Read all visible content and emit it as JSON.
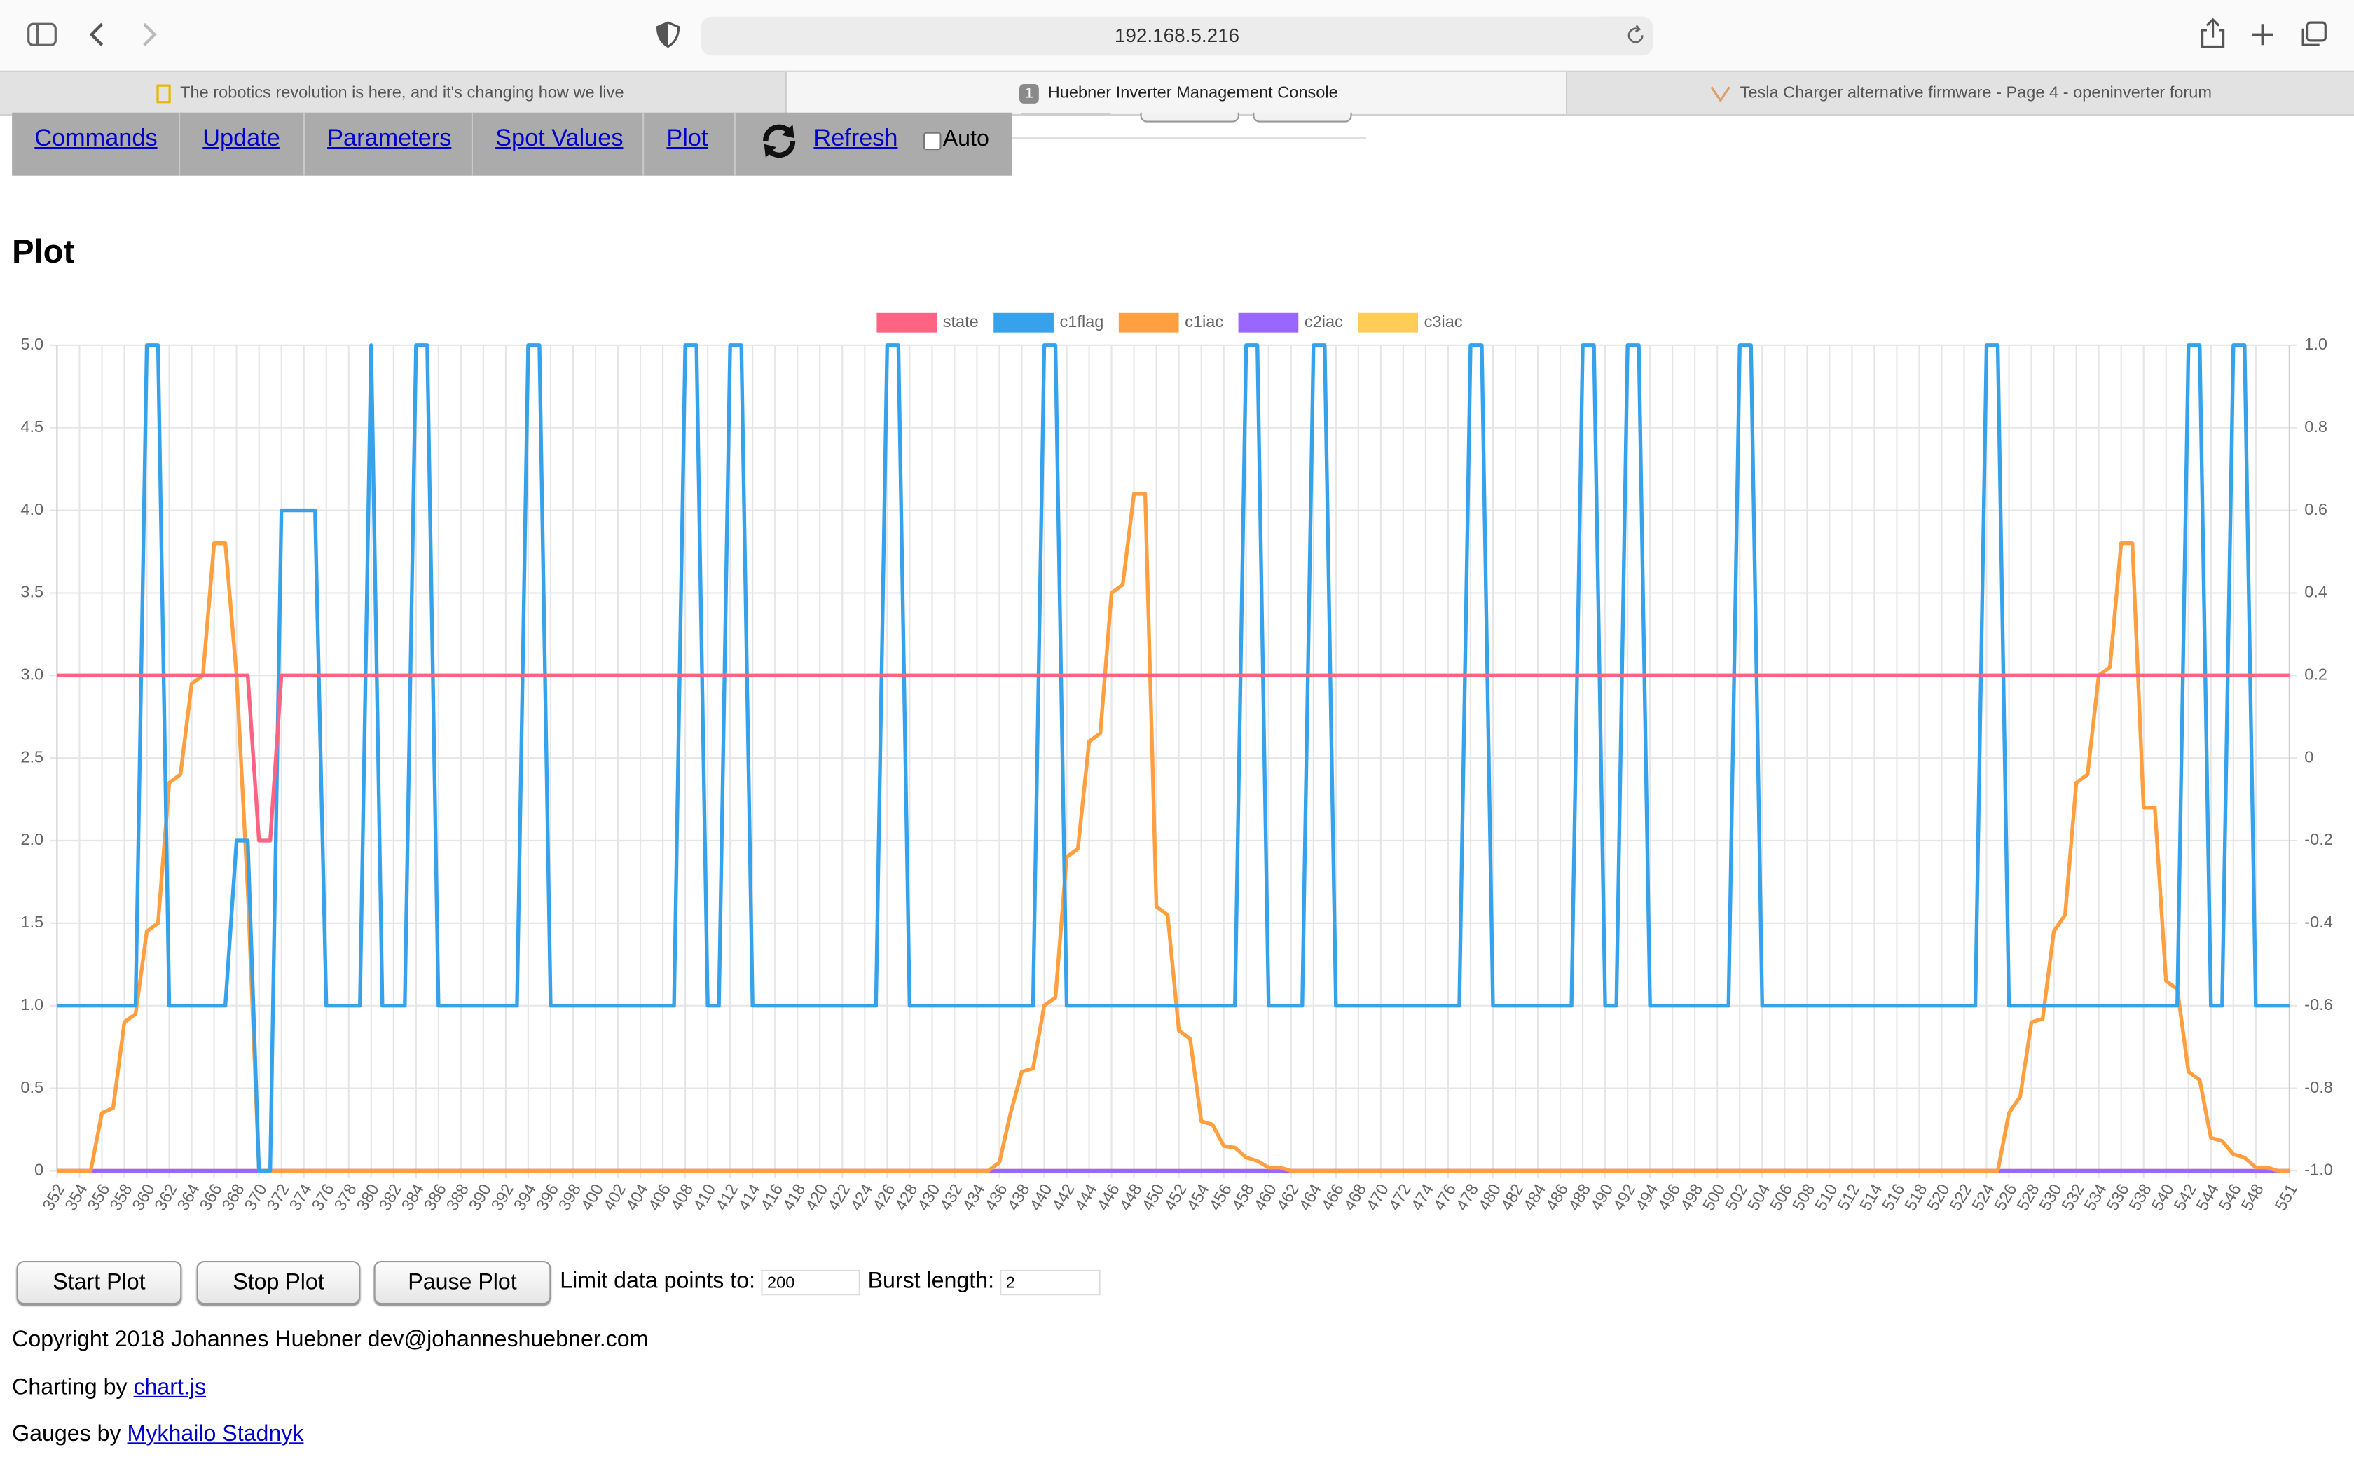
{
  "browser": {
    "url": "192.168.5.216",
    "tabs": [
      {
        "title": "The robotics revolution is here, and it's changing how we live"
      },
      {
        "badge": "1",
        "title": "Huebner Inverter Management Console"
      },
      {
        "title": "Tesla Charger alternative firmware - Page 4 - openinverter forum"
      }
    ]
  },
  "nav": {
    "links": [
      "Commands",
      "Update",
      "Parameters",
      "Spot Values",
      "Plot",
      "Refresh"
    ],
    "auto": "Auto"
  },
  "heading": "Plot",
  "chart_data": {
    "type": "line",
    "legend": "top",
    "grid": true,
    "xlim": [
      352,
      551
    ],
    "xticks": [
      352,
      354,
      356,
      358,
      360,
      362,
      364,
      366,
      368,
      370,
      372,
      374,
      376,
      378,
      380,
      382,
      384,
      386,
      388,
      390,
      392,
      394,
      396,
      398,
      400,
      402,
      404,
      406,
      408,
      410,
      412,
      414,
      416,
      418,
      420,
      422,
      424,
      426,
      428,
      430,
      432,
      434,
      436,
      438,
      440,
      442,
      444,
      446,
      448,
      450,
      452,
      454,
      456,
      458,
      460,
      462,
      464,
      466,
      468,
      470,
      472,
      474,
      476,
      478,
      480,
      482,
      484,
      486,
      488,
      490,
      492,
      494,
      496,
      498,
      500,
      502,
      504,
      506,
      508,
      510,
      512,
      514,
      516,
      518,
      520,
      522,
      524,
      526,
      528,
      530,
      532,
      534,
      536,
      538,
      540,
      542,
      544,
      546,
      548,
      551
    ],
    "ylim": [
      0,
      5
    ],
    "yticks": [
      0,
      0.5,
      {
        "value": 1,
        "label": "1.0"
      },
      1.5,
      {
        "value": 2,
        "label": "2.0"
      },
      2.5,
      {
        "value": 3,
        "label": "3.0"
      },
      3.5,
      {
        "value": 4,
        "label": "4.0"
      },
      4.5,
      {
        "value": 5,
        "label": "5.0"
      }
    ],
    "y2lim": [
      -1,
      1
    ],
    "y2ticks": [
      {
        "value": -1,
        "label": "-1.0"
      },
      -0.8,
      -0.6,
      -0.4,
      -0.2,
      0,
      0.2,
      0.4,
      0.6,
      0.8,
      {
        "value": 1,
        "label": "1.0"
      }
    ],
    "series": [
      {
        "name": "state",
        "color": "#ff6384",
        "x": [
          352,
          369,
          370,
          371,
          372,
          551
        ],
        "values": [
          3,
          3,
          2,
          2,
          3,
          3
        ]
      },
      {
        "name": "c1flag",
        "color": "#36a2eb",
        "x": [
          352,
          359,
          360,
          361,
          362,
          367,
          368,
          369,
          370,
          371,
          372,
          375,
          376,
          379,
          380,
          381,
          383,
          384,
          385,
          386,
          393,
          394,
          395,
          396,
          407,
          408,
          409,
          410,
          411,
          412,
          413,
          414,
          425,
          426,
          427,
          428,
          439,
          440,
          441,
          442,
          457,
          458,
          459,
          460,
          463,
          464,
          465,
          466,
          477,
          478,
          479,
          480,
          487,
          488,
          489,
          490,
          491,
          492,
          493,
          494,
          501,
          502,
          503,
          504,
          523,
          524,
          525,
          526,
          541,
          542,
          543,
          544,
          545,
          546,
          547,
          548,
          551
        ],
        "values": [
          1,
          1,
          5,
          5,
          1,
          1,
          2,
          2,
          0,
          0,
          4,
          4,
          1,
          1,
          5,
          1,
          1,
          5,
          5,
          1,
          1,
          5,
          5,
          1,
          1,
          5,
          5,
          1,
          1,
          5,
          5,
          1,
          1,
          5,
          5,
          1,
          1,
          5,
          5,
          1,
          1,
          5,
          5,
          1,
          1,
          5,
          5,
          1,
          1,
          5,
          5,
          1,
          1,
          5,
          5,
          1,
          1,
          5,
          5,
          1,
          1,
          5,
          5,
          1,
          1,
          5,
          5,
          1,
          1,
          5,
          5,
          1,
          1,
          5,
          5,
          1,
          1
        ]
      },
      {
        "name": "c1iac",
        "color": "#ff9f40",
        "x": [
          352,
          355,
          356,
          357,
          358,
          359,
          360,
          361,
          362,
          363,
          364,
          365,
          366,
          367,
          368,
          369,
          370,
          435,
          436,
          437,
          438,
          439,
          440,
          441,
          442,
          443,
          444,
          445,
          446,
          447,
          448,
          449,
          450,
          451,
          452,
          453,
          454,
          455,
          456,
          457,
          458,
          459,
          460,
          461,
          462,
          525,
          526,
          527,
          528,
          529,
          530,
          531,
          532,
          533,
          534,
          535,
          536,
          537,
          538,
          539,
          540,
          541,
          542,
          543,
          544,
          545,
          546,
          547,
          548,
          549,
          550,
          551
        ],
        "values": [
          0,
          0,
          0.35,
          0.38,
          0.9,
          0.95,
          1.45,
          1.5,
          2.35,
          2.4,
          2.95,
          3,
          3.8,
          3.8,
          3,
          1.7,
          0,
          0,
          0.05,
          0.35,
          0.6,
          0.62,
          1,
          1.05,
          1.9,
          1.95,
          2.6,
          2.65,
          3.5,
          3.55,
          4.1,
          4.1,
          1.6,
          1.55,
          0.85,
          0.8,
          0.3,
          0.28,
          0.15,
          0.14,
          0.08,
          0.06,
          0.02,
          0.02,
          0,
          0,
          0.35,
          0.45,
          0.9,
          0.92,
          1.45,
          1.55,
          2.35,
          2.4,
          3,
          3.05,
          3.8,
          3.8,
          2.2,
          2.2,
          1.15,
          1.1,
          0.6,
          0.55,
          0.2,
          0.18,
          0.1,
          0.08,
          0.02,
          0.02,
          0,
          0
        ]
      },
      {
        "name": "c2iac",
        "color": "#9966ff",
        "x": [
          352,
          551
        ],
        "values": [
          0,
          0
        ]
      },
      {
        "name": "c3iac",
        "color": "#ffcd56",
        "x": [
          352,
          551
        ],
        "values": [
          0,
          0
        ]
      }
    ]
  },
  "controls": {
    "buttons": [
      "Start Plot",
      "Stop Plot",
      "Pause Plot"
    ],
    "limit_label": "Limit data points to:",
    "limit_value": "200",
    "burst_label": "Burst length:",
    "burst_value": "2"
  },
  "footer": {
    "copyright": "Copyright 2018 Johannes Huebner dev@johanneshuebner.com",
    "charting": "Charting by",
    "charting_link": "chart.js",
    "gauges": "Gauges by",
    "gauges_link": "Mykhailo Stadnyk"
  }
}
